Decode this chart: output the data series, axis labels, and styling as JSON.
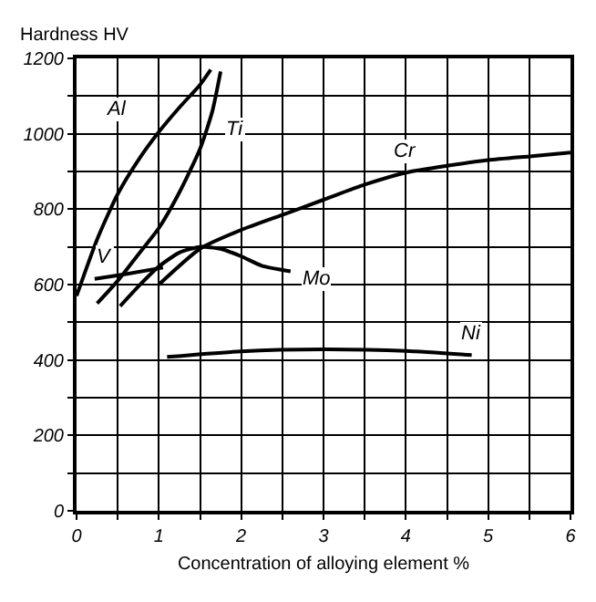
{
  "chart_data": {
    "type": "line",
    "xlabel": "Concentration of alloying element %",
    "ylabel": "Hardness HV",
    "xlim": [
      0,
      6
    ],
    "ylim": [
      0,
      1200
    ],
    "xticks": [
      0,
      {
        "value": 0.5,
        "label": null
      },
      1,
      {
        "value": 1.5,
        "label": null
      },
      2,
      {
        "value": 2.5,
        "label": null
      },
      3,
      {
        "value": 3.5,
        "label": null
      },
      4,
      {
        "value": 4.5,
        "label": null
      },
      5,
      {
        "value": 5.5,
        "label": null
      },
      6
    ],
    "yticks": [
      0,
      {
        "value": 100,
        "label": null
      },
      200,
      {
        "value": 300,
        "label": null
      },
      400,
      {
        "value": 500,
        "label": null
      },
      600,
      {
        "value": 700,
        "label": null
      },
      800,
      {
        "value": 900,
        "label": null
      },
      1000,
      {
        "value": 1100,
        "label": null
      },
      1200
    ],
    "grid": true,
    "legend": false,
    "marker": "none",
    "line_style": "solid",
    "series": [
      {
        "name": "Al",
        "color": "#000000",
        "x": [
          0,
          0.25,
          0.5,
          0.75,
          1,
          1.25,
          1.5,
          1.63
        ],
        "values": [
          570,
          720,
          840,
          930,
          1005,
          1070,
          1130,
          1170
        ]
      },
      {
        "name": "Ti",
        "color": "#000000",
        "x": [
          0.25,
          0.5,
          0.75,
          1,
          1.25,
          1.5,
          1.65,
          1.75
        ],
        "values": [
          550,
          610,
          680,
          750,
          845,
          960,
          1060,
          1165
        ]
      },
      {
        "name": "V",
        "color": "#000000",
        "x": [
          0.22,
          0.6,
          1.05
        ],
        "values": [
          615,
          628,
          645
        ]
      },
      {
        "name": "Mo",
        "color": "#000000",
        "x": [
          0.53,
          0.75,
          1,
          1.25,
          1.5,
          1.75,
          2,
          2.25,
          2.6
        ],
        "values": [
          543,
          595,
          648,
          685,
          700,
          695,
          675,
          650,
          635
        ]
      },
      {
        "name": "Cr",
        "color": "#000000",
        "x": [
          1,
          1.5,
          2,
          2.5,
          3,
          3.5,
          4,
          4.5,
          5,
          5.5,
          6
        ],
        "values": [
          600,
          695,
          745,
          785,
          825,
          865,
          897,
          915,
          930,
          940,
          950
        ]
      },
      {
        "name": "Ni",
        "color": "#000000",
        "x": [
          1.1,
          2,
          3,
          4,
          4.8
        ],
        "values": [
          408,
          423,
          428,
          424,
          413
        ]
      }
    ]
  }
}
